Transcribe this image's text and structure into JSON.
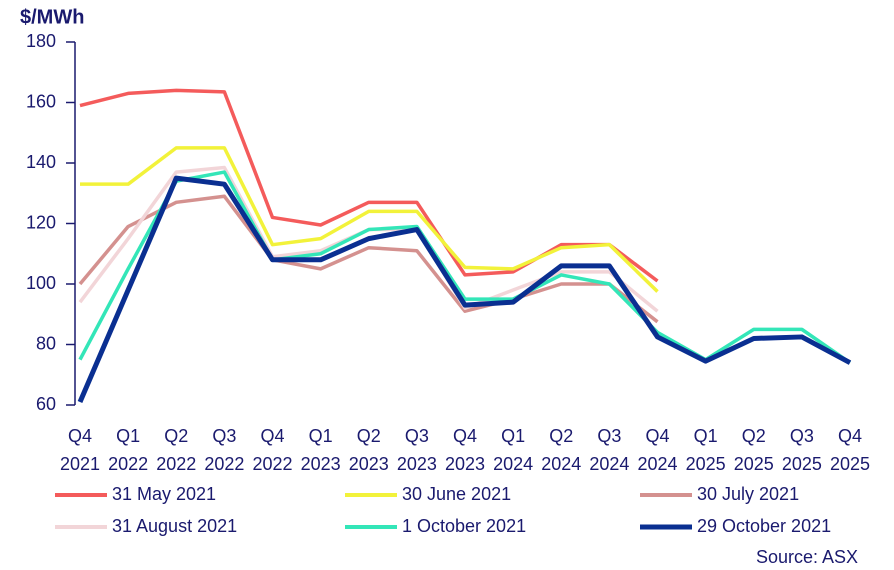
{
  "chart_data": {
    "type": "line",
    "y_label": "$/MWh",
    "source": "Source: ASX",
    "categories": [
      "Q4 2021",
      "Q1 2022",
      "Q2 2022",
      "Q3 2022",
      "Q4 2022",
      "Q1 2023",
      "Q2 2023",
      "Q3 2023",
      "Q4 2023",
      "Q1 2024",
      "Q2 2024",
      "Q3 2024",
      "Q4 2024",
      "Q1 2025",
      "Q2 2025",
      "Q3 2025",
      "Q4 2025"
    ],
    "series": [
      {
        "name": "31 May 2021",
        "color": "#f45b5b",
        "values": [
          159,
          163,
          164,
          163.5,
          122,
          119.5,
          127,
          127,
          103,
          104,
          113,
          113,
          101,
          null,
          null,
          null,
          null
        ]
      },
      {
        "name": "30 June 2021",
        "color": "#f2f23a",
        "values": [
          133,
          133,
          145,
          145,
          113,
          115,
          124,
          124,
          105.5,
          105,
          112,
          113,
          97.5,
          null,
          null,
          null,
          null
        ]
      },
      {
        "name": "30 July 2021",
        "color": "#d4918f",
        "values": [
          100,
          119,
          127,
          129,
          108,
          105,
          112,
          111,
          91,
          95,
          100,
          100,
          87.5,
          null,
          null,
          null,
          null
        ]
      },
      {
        "name": "31 August 2021",
        "color": "#f2d5d8",
        "values": [
          94,
          115,
          137,
          138.5,
          109,
          111,
          118,
          118,
          92,
          98,
          104,
          104,
          91,
          null,
          null,
          null,
          null
        ]
      },
      {
        "name": "1 October 2021",
        "color": "#33e6b8",
        "values": [
          75,
          105,
          134,
          137,
          108,
          110,
          118,
          119,
          95,
          95,
          103,
          100,
          84,
          75,
          85,
          85,
          74
        ]
      },
      {
        "name": "29 October 2021",
        "color": "#0a2f91",
        "values": [
          61,
          98,
          135,
          133,
          108,
          108,
          115,
          118,
          93,
          94,
          106,
          106,
          82.5,
          74.5,
          82,
          82.5,
          74
        ]
      }
    ],
    "ylim": [
      60,
      180
    ],
    "yticks": [
      60,
      80,
      100,
      120,
      140,
      160,
      180
    ],
    "legend": "bottom"
  }
}
